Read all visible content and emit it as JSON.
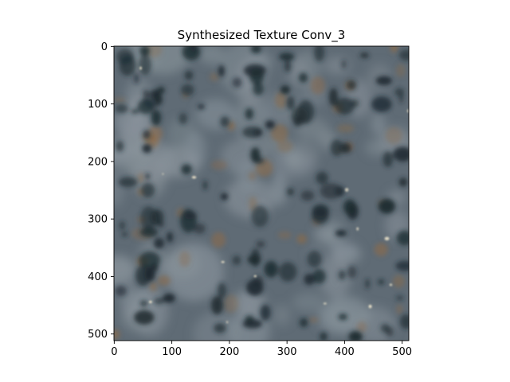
{
  "figure": {
    "title": "Synthesized Texture Conv_3"
  },
  "image": {
    "description_colors": {
      "base": "#5f6b75",
      "dark": "#1c2a30",
      "light": "#8a949c",
      "brown": "#8a6a4a",
      "highlight": "#e8e0c8"
    },
    "size": [
      512,
      512
    ]
  },
  "axes": {
    "x_ticks": [
      "0",
      "100",
      "200",
      "300",
      "400",
      "500"
    ],
    "x_tick_values": [
      0,
      100,
      200,
      300,
      400,
      500
    ],
    "y_ticks": [
      "0",
      "100",
      "200",
      "300",
      "400",
      "500"
    ],
    "y_tick_values": [
      0,
      100,
      200,
      300,
      400,
      500
    ],
    "xlim": [
      -0.5,
      511.5
    ],
    "ylim": [
      511.5,
      -0.5
    ]
  }
}
